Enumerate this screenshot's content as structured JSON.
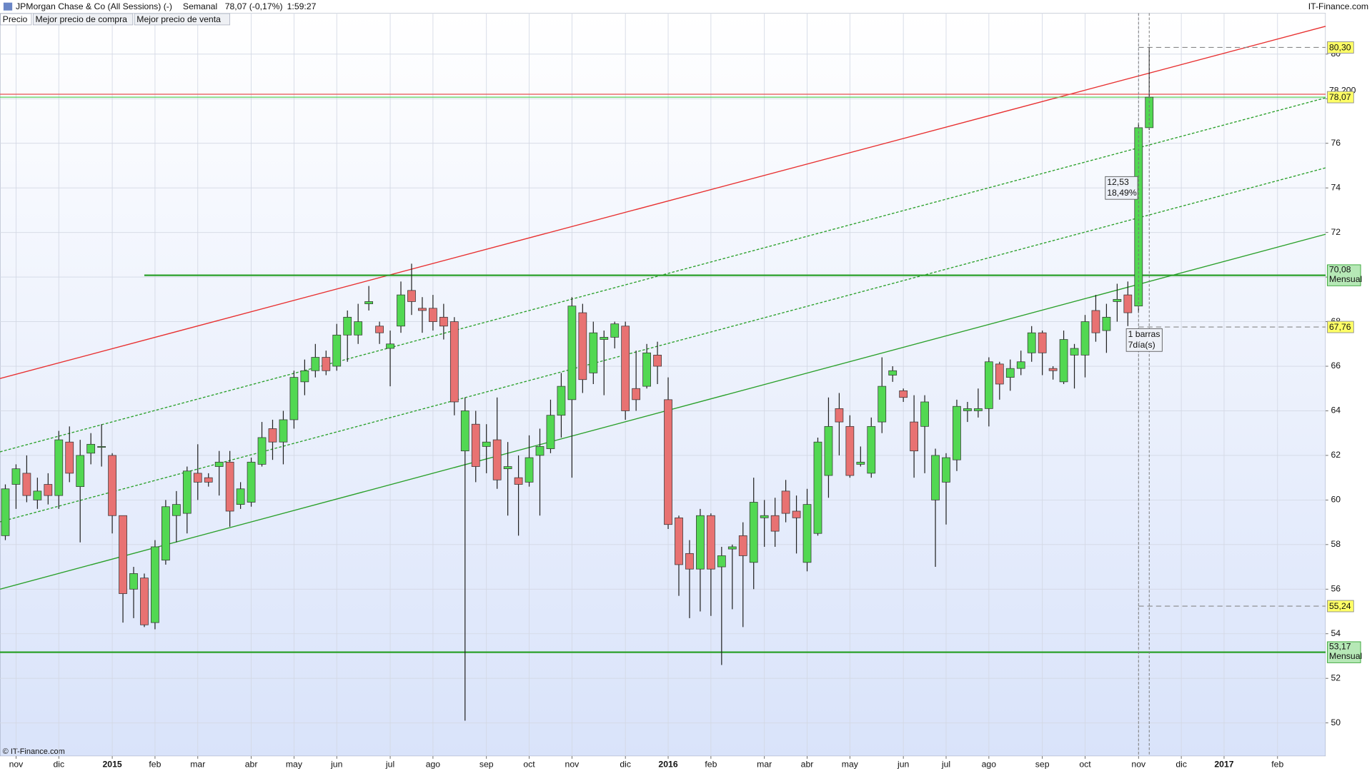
{
  "chart_data": {
    "type": "candlestick",
    "title": "JPMorgan Chase & Co (All Sessions) (-)",
    "period": "Semanal",
    "last": "78,07 (-0,17%)",
    "time": "1:59:27",
    "brand": "IT-Finance.com",
    "copyright": "© IT-Finance.com",
    "legend": [
      {
        "name": "Precio",
        "color": "#000000"
      },
      {
        "name": "Mejor precio de compra",
        "color": "#5ad05a"
      },
      {
        "name": "Mejor precio de venta",
        "color": "#e86060"
      }
    ],
    "up_color": "#52d852",
    "down_color": "#e87272",
    "wick_color": "#222222",
    "grid": true,
    "ylim": [
      48.51,
      81.84
    ],
    "yticks": [
      50,
      52,
      54,
      56,
      58,
      60,
      62,
      64,
      66,
      68,
      70,
      72,
      74,
      76,
      78,
      80
    ],
    "categories": [
      null,
      "nov",
      null,
      null,
      null,
      "dic",
      null,
      null,
      null,
      null,
      "2015",
      null,
      null,
      null,
      "feb",
      null,
      null,
      null,
      "mar",
      null,
      null,
      null,
      null,
      "abr",
      null,
      null,
      null,
      "may",
      null,
      null,
      null,
      "jun",
      null,
      null,
      null,
      null,
      "jul",
      null,
      null,
      null,
      "ago",
      null,
      null,
      null,
      null,
      "sep",
      null,
      null,
      null,
      "oct",
      null,
      null,
      null,
      "nov",
      null,
      null,
      null,
      null,
      "dic",
      null,
      null,
      null,
      "2016",
      null,
      null,
      null,
      "feb",
      null,
      null,
      null,
      null,
      "mar",
      null,
      null,
      null,
      "abr",
      null,
      null,
      null,
      "may",
      null,
      null,
      null,
      null,
      "jun",
      null,
      null,
      null,
      "jul",
      null,
      null,
      null,
      "ago",
      null,
      null,
      null,
      null,
      "sep",
      null,
      null,
      null,
      "oct",
      null,
      null,
      null,
      null,
      "nov",
      null,
      null,
      null,
      "dic",
      null,
      null,
      null,
      "2017",
      null,
      null,
      null,
      null,
      "feb",
      null,
      null,
      null,
      null
    ],
    "open": [
      58.4,
      60.7,
      61.2,
      60.0,
      60.7,
      60.2,
      62.6,
      60.6,
      62.1,
      62.4,
      62.0,
      59.3,
      56.0,
      56.5,
      54.5,
      57.3,
      59.3,
      59.4,
      61.2,
      61.0,
      61.5,
      61.7,
      59.8,
      59.9,
      61.6,
      63.2,
      62.6,
      63.6,
      65.3,
      65.8,
      66.4,
      66.0,
      67.4,
      67.4,
      68.8,
      67.8,
      66.8,
      67.8,
      69.4,
      68.6,
      68.6,
      68.2,
      68.0,
      62.2,
      63.4,
      62.4,
      62.7,
      61.4,
      61.0,
      60.8,
      62.0,
      62.3,
      63.8,
      64.5,
      68.4,
      65.7,
      67.2,
      67.3,
      67.8,
      65.0,
      65.1,
      66.5,
      64.5,
      59.2,
      57.6,
      56.9,
      59.3,
      57.0,
      57.8,
      58.4,
      57.2,
      59.2,
      59.3,
      60.4,
      59.5,
      57.2,
      58.5,
      61.1,
      64.1,
      63.3,
      61.6,
      61.2,
      63.5,
      65.6,
      64.9,
      63.5,
      63.3,
      60.0,
      60.8,
      61.8,
      64.0,
      64.0,
      64.1,
      66.1,
      65.5,
      65.9,
      66.6,
      67.5,
      65.9,
      65.3,
      66.5,
      66.5,
      68.5,
      67.6,
      68.9,
      69.2,
      68.7,
      76.7,
      null,
      null,
      null,
      null,
      null,
      null,
      null,
      null,
      null,
      null,
      null,
      null,
      null,
      null,
      null,
      null
    ],
    "high": [
      60.7,
      61.6,
      62.0,
      61.0,
      61.2,
      63.1,
      63.3,
      62.7,
      63.0,
      63.4,
      62.1,
      59.3,
      57.0,
      56.7,
      58.2,
      60.0,
      60.4,
      61.5,
      62.5,
      61.2,
      62.2,
      62.2,
      60.8,
      61.9,
      63.5,
      63.6,
      64.0,
      65.8,
      66.3,
      67.0,
      66.7,
      67.9,
      68.5,
      68.8,
      69.6,
      68.0,
      67.6,
      69.8,
      70.6,
      69.1,
      69.2,
      68.8,
      68.2,
      64.6,
      64.0,
      63.4,
      64.6,
      62.6,
      62.0,
      62.9,
      63.2,
      64.5,
      65.7,
      69.1,
      68.8,
      68.0,
      67.6,
      68.0,
      68.0,
      66.7,
      67.0,
      67.1,
      65.5,
      59.3,
      58.2,
      59.6,
      59.4,
      57.9,
      58.0,
      59.0,
      61.0,
      60.0,
      60.1,
      60.9,
      60.2,
      60.5,
      62.8,
      64.6,
      64.8,
      63.8,
      62.4,
      63.7,
      66.4,
      66.0,
      65.0,
      64.7,
      64.7,
      62.3,
      62.1,
      64.5,
      64.4,
      65.0,
      66.4,
      66.2,
      66.3,
      66.7,
      67.8,
      67.6,
      66.0,
      67.6,
      67.0,
      68.3,
      69.2,
      68.8,
      69.7,
      69.8,
      76.9,
      80.3,
      null,
      null,
      null,
      null,
      null,
      null,
      null,
      null,
      null,
      null,
      null,
      null,
      null,
      null,
      null,
      null
    ],
    "low": [
      58.2,
      59.6,
      59.9,
      59.6,
      59.8,
      59.6,
      60.8,
      58.1,
      61.6,
      61.5,
      58.5,
      54.5,
      54.7,
      54.3,
      54.2,
      57.1,
      58.1,
      58.5,
      60.0,
      60.6,
      60.2,
      58.8,
      59.6,
      59.7,
      61.5,
      61.8,
      61.6,
      63.2,
      64.7,
      65.5,
      65.6,
      65.8,
      66.2,
      67.0,
      68.5,
      67.0,
      65.1,
      67.5,
      68.3,
      67.5,
      67.6,
      67.2,
      63.8,
      50.1,
      60.8,
      61.2,
      60.5,
      59.3,
      58.4,
      60.6,
      59.3,
      62.1,
      62.8,
      61.0,
      64.8,
      65.2,
      64.7,
      66.8,
      63.6,
      64.0,
      65.0,
      65.2,
      58.7,
      55.7,
      54.7,
      55.0,
      54.8,
      52.6,
      55.1,
      54.3,
      56.0,
      57.9,
      57.9,
      59.0,
      57.6,
      56.8,
      58.4,
      60.1,
      62.0,
      61.0,
      61.5,
      61.0,
      63.0,
      65.3,
      64.4,
      61.0,
      61.2,
      57.0,
      58.9,
      61.3,
      63.5,
      63.7,
      63.3,
      64.5,
      64.9,
      65.6,
      66.2,
      65.6,
      65.4,
      65.2,
      65.0,
      65.5,
      67.1,
      66.6,
      68.0,
      67.8,
      68.4,
      76.6,
      null,
      null,
      null,
      null,
      null,
      null,
      null,
      null,
      null,
      null,
      null,
      null,
      null,
      null,
      null,
      null
    ],
    "close": [
      60.5,
      61.4,
      60.2,
      60.4,
      60.2,
      62.7,
      61.2,
      62.0,
      62.5,
      62.4,
      59.3,
      55.8,
      56.7,
      54.4,
      57.9,
      59.7,
      59.8,
      61.3,
      60.8,
      60.8,
      61.7,
      59.5,
      60.5,
      61.7,
      62.8,
      62.6,
      63.6,
      65.5,
      65.8,
      66.4,
      65.8,
      67.4,
      68.2,
      68.0,
      68.9,
      67.5,
      67.0,
      69.2,
      68.9,
      68.5,
      68.0,
      67.8,
      64.4,
      64.0,
      61.5,
      62.6,
      60.9,
      61.5,
      60.7,
      61.9,
      62.4,
      63.8,
      65.1,
      68.7,
      65.4,
      67.5,
      67.3,
      67.9,
      64.0,
      64.5,
      66.6,
      66.0,
      58.9,
      57.1,
      56.9,
      59.3,
      56.9,
      57.5,
      57.9,
      57.5,
      59.9,
      59.3,
      58.6,
      59.4,
      59.2,
      59.8,
      62.6,
      63.3,
      63.5,
      61.1,
      61.7,
      63.3,
      65.1,
      65.8,
      64.6,
      62.2,
      64.4,
      62.0,
      61.9,
      64.2,
      64.1,
      64.1,
      66.2,
      65.2,
      65.9,
      66.2,
      67.5,
      66.6,
      65.8,
      67.2,
      66.8,
      68.0,
      67.5,
      68.2,
      69.0,
      68.4,
      76.7,
      78.07,
      null,
      null,
      null,
      null,
      null,
      null,
      null,
      null,
      null,
      null,
      null,
      null,
      null,
      null,
      null,
      null
    ],
    "trend_lines": [
      {
        "color": "#e83030",
        "dash": false,
        "x": [
          -0.5,
          123.5
        ],
        "y": [
          65.45,
          81.25
        ]
      },
      {
        "color": "#2aa02a",
        "dash": false,
        "x": [
          -0.5,
          123.5
        ],
        "y": [
          56.0,
          71.92
        ]
      },
      {
        "color": "#2aa02a",
        "dash": true,
        "x": [
          -0.5,
          123.5
        ],
        "y": [
          62.16,
          78.04
        ]
      },
      {
        "color": "#2aa02a",
        "dash": true,
        "x": [
          -0.5,
          123.5
        ],
        "y": [
          59.02,
          74.9
        ]
      }
    ],
    "levels": [
      {
        "value": 80.3,
        "label": "80,30",
        "kind": "marker",
        "start": 106
      },
      {
        "value": 78.2,
        "label": "78,200",
        "kind": "ask",
        "start": -0.5
      },
      {
        "value": 78.07,
        "label": "78,07",
        "kind": "last",
        "start": -0.5
      },
      {
        "value": 70.08,
        "label": "70,08",
        "note": "Mensual",
        "kind": "support",
        "start": 13
      },
      {
        "value": 67.76,
        "label": "67,76",
        "kind": "marker",
        "start": 106
      },
      {
        "value": 55.24,
        "label": "55,24",
        "kind": "marker",
        "start": 106
      },
      {
        "value": 53.17,
        "label": "53,17",
        "note": "Mensual",
        "kind": "support",
        "start": -0.5
      }
    ],
    "measure": {
      "from": 106,
      "to": 107,
      "change": "12,53",
      "percent": "18,49%",
      "bars": "1 barras",
      "days": "7día(s)"
    }
  }
}
